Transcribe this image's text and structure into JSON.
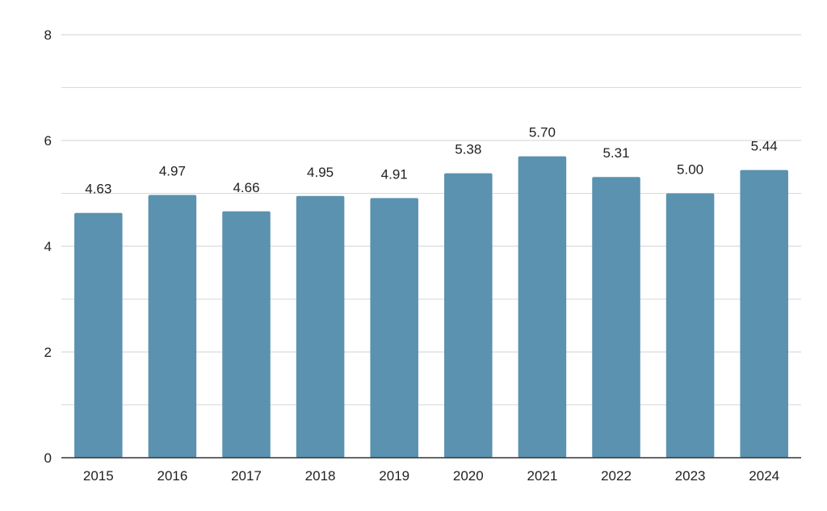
{
  "chart_data": {
    "type": "bar",
    "title": "",
    "xlabel": "",
    "ylabel": "",
    "categories": [
      "2015",
      "2016",
      "2017",
      "2018",
      "2019",
      "2020",
      "2021",
      "2022",
      "2023",
      "2024"
    ],
    "values": [
      4.63,
      4.97,
      4.66,
      4.95,
      4.91,
      5.38,
      5.7,
      5.31,
      5.0,
      5.44
    ],
    "value_labels": [
      "4.63",
      "4.97",
      "4.66",
      "4.95",
      "4.91",
      "5.38",
      "5.70",
      "5.31",
      "5.00",
      "5.44"
    ],
    "ylim": [
      0,
      8
    ],
    "yticks": [
      "0",
      "2",
      "4",
      "6",
      "8"
    ],
    "grid": true,
    "legend": "none",
    "colors": {
      "bar": "#5b92b0",
      "grid": "#d9d9d9",
      "axis": "#333333",
      "text": "#222222"
    }
  }
}
